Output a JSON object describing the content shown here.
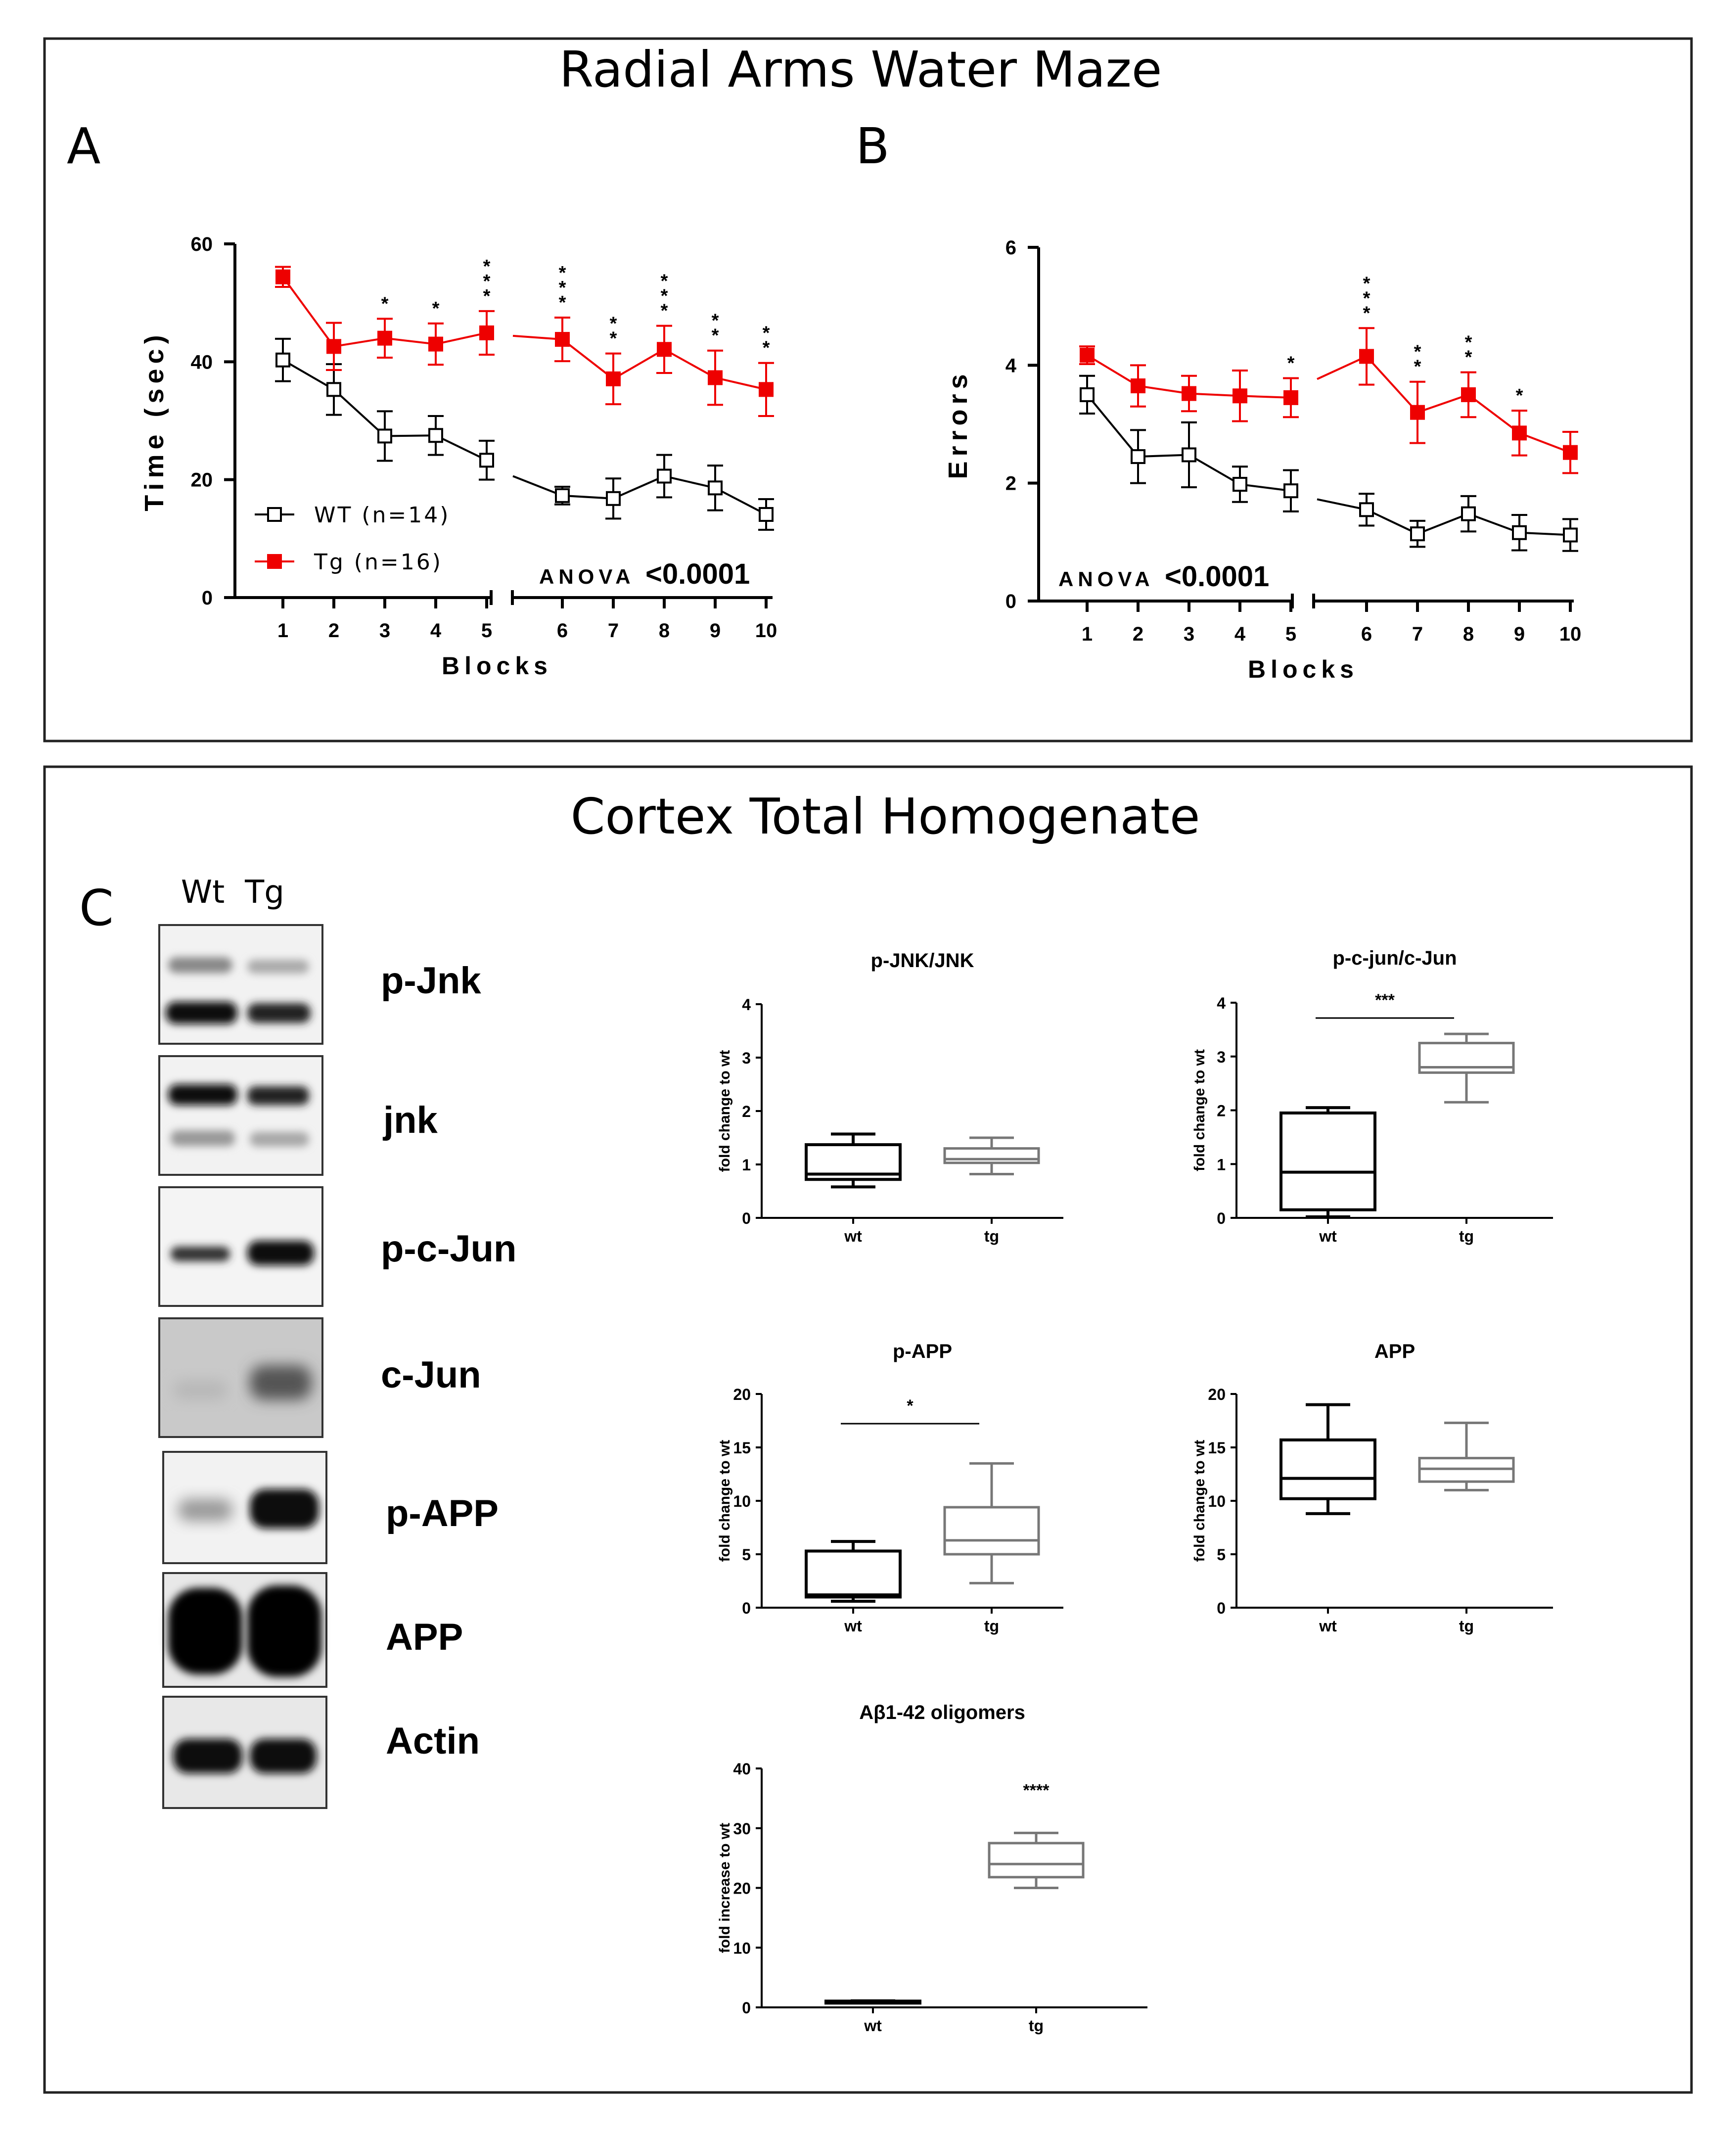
{
  "colors": {
    "wt": "#000000",
    "tg": "#ee0000",
    "box_wt": "#000000",
    "box_tg": "#777777"
  },
  "top_panel": {
    "title": "Radial Arms Water Maze",
    "labels": [
      "A",
      "B"
    ]
  },
  "bottom_panel": {
    "title": "Cortex Total Homogenate",
    "label": "C",
    "lane_labels": [
      "Wt",
      "Tg"
    ],
    "blots": [
      {
        "label": "p-Jnk"
      },
      {
        "label": "jnk"
      },
      {
        "label": "p-c-Jun"
      },
      {
        "label": "c-Jun"
      },
      {
        "label": "p-APP"
      },
      {
        "label": "APP"
      },
      {
        "label": "Actin"
      }
    ]
  },
  "chart_data": [
    {
      "id": "A",
      "type": "line",
      "xlabel": "Blocks",
      "ylabel": "Time (sec)",
      "ylim": [
        0,
        60
      ],
      "yticks": [
        0,
        20,
        40,
        60
      ],
      "x": [
        1,
        2,
        3,
        4,
        5,
        6,
        7,
        8,
        9,
        10
      ],
      "annotation_prefix": "ANOVA",
      "annotation_value": "<0.0001",
      "series": [
        {
          "name": "WT (n=14)",
          "group": "wt",
          "values": [
            40.3,
            35.3,
            27.4,
            27.5,
            23.3,
            17.3,
            16.8,
            20.6,
            18.6,
            14.1
          ],
          "errors": [
            3.6,
            4.3,
            4.2,
            3.3,
            3.3,
            1.5,
            3.4,
            3.6,
            3.8,
            2.6
          ]
        },
        {
          "name": "Tg (n=16)",
          "group": "tg",
          "values": [
            54.4,
            42.6,
            44.0,
            43.0,
            44.9,
            43.8,
            37.1,
            42.1,
            37.3,
            35.3
          ],
          "errors": [
            1.7,
            4.0,
            3.3,
            3.5,
            3.7,
            3.7,
            4.3,
            4.0,
            4.6,
            4.5
          ]
        }
      ],
      "significance": [
        "",
        "",
        "*",
        "*",
        "***",
        "***",
        "**",
        "***",
        "**",
        "**"
      ]
    },
    {
      "id": "B",
      "type": "line",
      "xlabel": "Blocks",
      "ylabel": "Errors",
      "ylim": [
        0,
        6
      ],
      "yticks": [
        0,
        2,
        4,
        6
      ],
      "x": [
        1,
        2,
        3,
        4,
        5,
        6,
        7,
        8,
        9,
        10
      ],
      "annotation_prefix": "ANOVA",
      "annotation_value": "<0.0001",
      "series": [
        {
          "name": "WT",
          "group": "wt",
          "values": [
            3.5,
            2.45,
            2.48,
            1.98,
            1.87,
            1.55,
            1.14,
            1.48,
            1.16,
            1.12
          ],
          "errors": [
            0.32,
            0.45,
            0.55,
            0.3,
            0.35,
            0.27,
            0.22,
            0.3,
            0.3,
            0.27
          ]
        },
        {
          "name": "Tg",
          "group": "tg",
          "values": [
            4.17,
            3.65,
            3.52,
            3.48,
            3.45,
            4.15,
            3.2,
            3.5,
            2.85,
            2.52
          ],
          "errors": [
            0.15,
            0.35,
            0.3,
            0.43,
            0.33,
            0.48,
            0.52,
            0.38,
            0.38,
            0.35
          ]
        }
      ],
      "significance": [
        "",
        "",
        "",
        "",
        "*",
        "***",
        "**",
        "**",
        "*",
        ""
      ]
    },
    {
      "id": "p-JNK/JNK",
      "type": "box",
      "title": "p-JNK/JNK",
      "ylabel": "fold change to wt",
      "categories": [
        "wt",
        "tg"
      ],
      "ylim": [
        0,
        4
      ],
      "yticks": [
        0,
        1,
        2,
        3,
        4
      ],
      "significance": "",
      "boxes": [
        {
          "min": 0.58,
          "q1": 0.72,
          "median": 0.82,
          "q3": 1.37,
          "max": 1.57
        },
        {
          "min": 0.82,
          "q1": 1.03,
          "median": 1.1,
          "q3": 1.3,
          "max": 1.5
        }
      ]
    },
    {
      "id": "p-c-jun/c-Jun",
      "type": "box",
      "title": "p-c-jun/c-Jun",
      "ylabel": "fold change to wt",
      "categories": [
        "wt",
        "tg"
      ],
      "ylim": [
        0,
        4
      ],
      "yticks": [
        0,
        1,
        2,
        3,
        4
      ],
      "significance": "***",
      "boxes": [
        {
          "min": 0.02,
          "q1": 0.15,
          "median": 0.85,
          "q3": 1.95,
          "max": 2.05
        },
        {
          "min": 2.15,
          "q1": 2.7,
          "median": 2.8,
          "q3": 3.25,
          "max": 3.42
        }
      ]
    },
    {
      "id": "p-APP",
      "type": "box",
      "title": "p-APP",
      "ylabel": "fold change to wt",
      "categories": [
        "wt",
        "tg"
      ],
      "ylim": [
        0,
        20
      ],
      "yticks": [
        0,
        5,
        10,
        15,
        20
      ],
      "significance": "*",
      "boxes": [
        {
          "min": 0.6,
          "q1": 1.0,
          "median": 1.2,
          "q3": 5.3,
          "max": 6.2
        },
        {
          "min": 2.3,
          "q1": 5.0,
          "median": 6.3,
          "q3": 9.4,
          "max": 13.5
        }
      ]
    },
    {
      "id": "APP",
      "type": "box",
      "title": "APP",
      "ylabel": "fold change to wt",
      "categories": [
        "wt",
        "tg"
      ],
      "ylim": [
        0,
        20
      ],
      "yticks": [
        0,
        5,
        10,
        15,
        20
      ],
      "significance": "",
      "boxes": [
        {
          "min": 8.8,
          "q1": 10.2,
          "median": 12.1,
          "q3": 15.7,
          "max": 19.0
        },
        {
          "min": 11.0,
          "q1": 11.8,
          "median": 13.0,
          "q3": 14.0,
          "max": 17.3
        }
      ]
    },
    {
      "id": "Abeta",
      "type": "box",
      "title": "Aβ1-42 oligomers",
      "ylabel": "fold increase to wt",
      "categories": [
        "wt",
        "tg"
      ],
      "ylim": [
        0,
        40
      ],
      "yticks": [
        0,
        10,
        20,
        30,
        40
      ],
      "significance": "****",
      "boxes": [
        {
          "min": 0.9,
          "q1": 1.0,
          "median": 1.0,
          "q3": 1.05,
          "max": 1.1
        },
        {
          "min": 20.0,
          "q1": 21.8,
          "median": 24.0,
          "q3": 27.5,
          "max": 29.2
        }
      ]
    }
  ]
}
